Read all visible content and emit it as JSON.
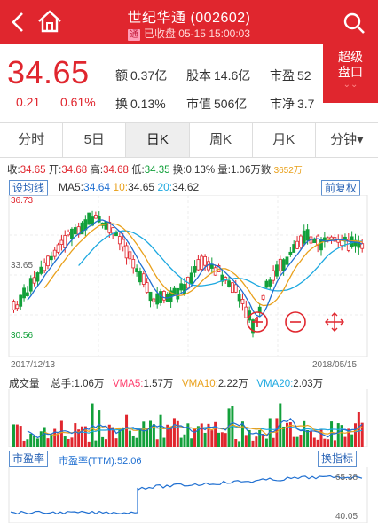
{
  "header": {
    "title": "世纪华通 (002602)",
    "status_tag": "通",
    "status": "已收盘 05-15 15:00:03"
  },
  "quote": {
    "price": "34.65",
    "change": "0.21",
    "change_pct": "0.61%",
    "amount_label": "额",
    "amount": "0.37亿",
    "share_cap_label": "股本",
    "share_cap": "14.6亿",
    "pe_label": "市盈",
    "pe": "52",
    "turnover_label": "换",
    "turnover": "0.13%",
    "mkt_cap_label": "市值",
    "mkt_cap": "506亿",
    "pb_label": "市净",
    "pb": "3.7"
  },
  "super_panel": {
    "line1": "超级",
    "line2": "盘口",
    "arrow": "⌄⌄"
  },
  "tabs": [
    {
      "label": "分时"
    },
    {
      "label": "5日"
    },
    {
      "label": "日K"
    },
    {
      "label": "周K"
    },
    {
      "label": "月K"
    },
    {
      "label": "分钟▾"
    }
  ],
  "info": {
    "close_label": "收:",
    "close": "34.65",
    "open_label": "开:",
    "open": "34.68",
    "high_label": "高:",
    "high": "34.68",
    "low_label": "低:",
    "low": "34.35",
    "turnover_label": "换:",
    "turnover": "0.13%",
    "volume_label": "量:",
    "volume": "1.06万数",
    "extra": "3652万"
  },
  "ma": {
    "button": "设均线",
    "ma5_label": "MA5:",
    "ma5": "34.64",
    "ma10_label": "10:",
    "ma10": "34.65",
    "ma20_label": "20:",
    "ma20": "34.62",
    "adjust_button": "前复权"
  },
  "kline_axis": {
    "y_max": "36.73",
    "y_mid": "33.65",
    "y_min": "30.56",
    "date_start": "2017/12/13",
    "date_end": "2018/05/15"
  },
  "volume": {
    "label": "成交量",
    "total_label": "总手:",
    "total": "1.06万",
    "vma5_label": "VMA5:",
    "vma5": "1.57万",
    "vma10_label": "VMA10:",
    "vma10": "2.22万",
    "vma20_label": "VMA20:",
    "vma20": "2.03万"
  },
  "pe_panel": {
    "button": "市盈率",
    "ttm_label": "市盈率(TTM):",
    "ttm": "52.06",
    "switch_button": "换指标",
    "y_max": "65.38",
    "y_min": "40.05"
  },
  "colors": {
    "up": "#e0262e",
    "down": "#12a03a",
    "ma5": "#1f6fd1",
    "ma10": "#e9a01a",
    "ma20": "#1ca8e0"
  },
  "icons": {
    "back": "chevron-left-icon",
    "home": "home-icon",
    "search": "search-icon",
    "zoom_in": "plus-circle-icon",
    "zoom_out": "minus-circle-icon",
    "move": "move-arrows-icon"
  }
}
